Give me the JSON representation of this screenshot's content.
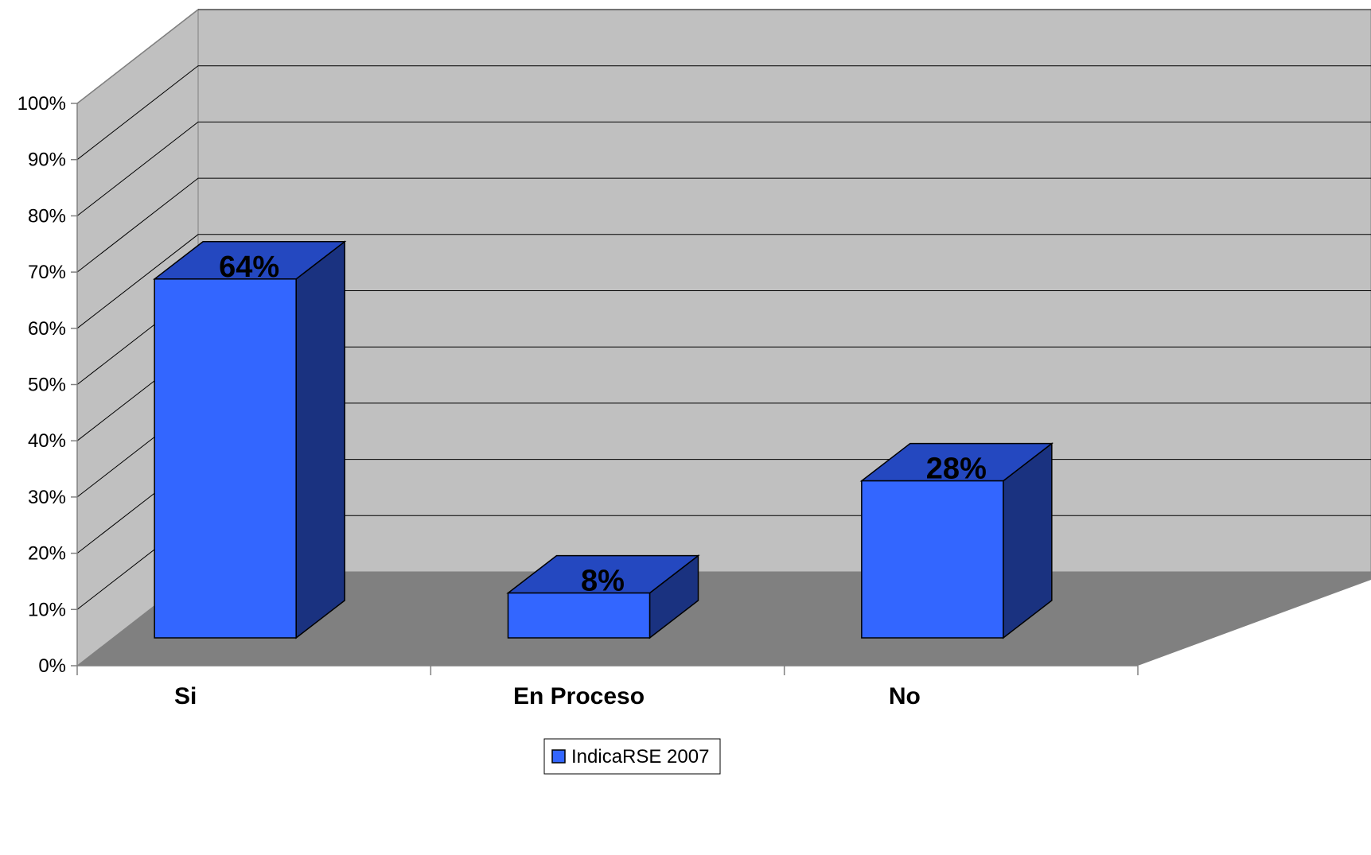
{
  "chart_data": {
    "type": "bar",
    "style": "3d-column",
    "categories": [
      "Si",
      "En Proceso",
      "No"
    ],
    "series": [
      {
        "name": "IndicaRSE 2007",
        "values": [
          64,
          8,
          28
        ],
        "color": "#3366ff"
      }
    ],
    "data_labels": [
      "64%",
      "8%",
      "28%"
    ],
    "y_ticks": [
      "0%",
      "10%",
      "20%",
      "30%",
      "40%",
      "50%",
      "60%",
      "70%",
      "80%",
      "90%",
      "100%"
    ],
    "ylim": [
      0,
      100
    ],
    "grid": true,
    "legend_position": "bottom",
    "colors": {
      "wall": "#c0c0c0",
      "floor": "#808080",
      "bar_front": "#3366ff",
      "bar_top": "#2448c0",
      "bar_side": "#1a3280"
    }
  }
}
